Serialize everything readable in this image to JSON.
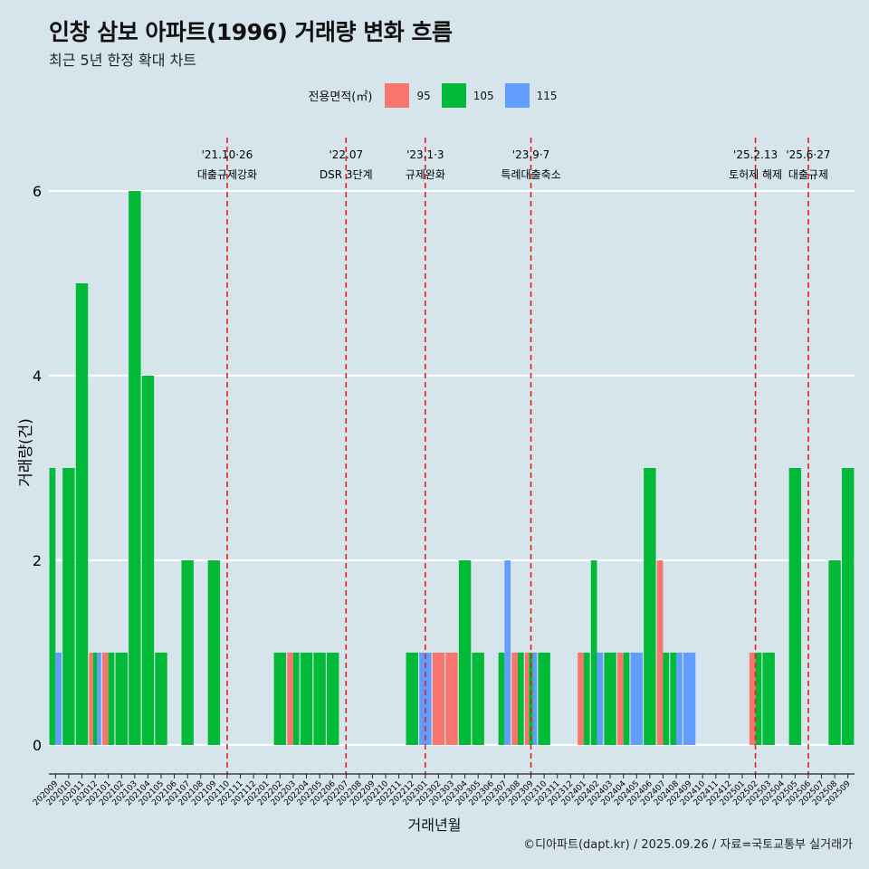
{
  "title": "인창 삼보 아파트(1996) 거래량 변화 흐름",
  "subtitle": "최근 5년 한정 확대 차트",
  "legend": {
    "title": "전용면적(㎡)",
    "items": [
      {
        "label": "95",
        "color": "#F8766D"
      },
      {
        "label": "105",
        "color": "#00BA38"
      },
      {
        "label": "115",
        "color": "#619CFF"
      }
    ]
  },
  "credit": "©디아파트(dapt.kr) / 2025.09.26 / 자료=국토교통부 실거래가",
  "chart_data": {
    "type": "bar",
    "xlabel": "거래년월",
    "ylabel": "거래량(건)",
    "ylim": [
      -0.3,
      6.3
    ],
    "yticks": [
      0,
      2,
      4,
      6
    ],
    "categories": [
      "202009",
      "202010",
      "202011",
      "202012",
      "202101",
      "202102",
      "202103",
      "202104",
      "202105",
      "202106",
      "202107",
      "202108",
      "202109",
      "202110",
      "202111",
      "202112",
      "202201",
      "202202",
      "202203",
      "202204",
      "202205",
      "202206",
      "202207",
      "202208",
      "202209",
      "202210",
      "202211",
      "202212",
      "202301",
      "202302",
      "202303",
      "202304",
      "202305",
      "202306",
      "202307",
      "202308",
      "202309",
      "202310",
      "202311",
      "202312",
      "202401",
      "202402",
      "202403",
      "202404",
      "202405",
      "202406",
      "202407",
      "202408",
      "202409",
      "202410",
      "202411",
      "202412",
      "202501",
      "202502",
      "202503",
      "202504",
      "202505",
      "202506",
      "202507",
      "202508",
      "202509"
    ],
    "series": [
      {
        "name": "95",
        "color": "#F8766D",
        "values": [
          0,
          0,
          0,
          1,
          1,
          0,
          0,
          0,
          0,
          0,
          0,
          0,
          0,
          0,
          0,
          0,
          0,
          0,
          1,
          0,
          0,
          0,
          0,
          0,
          0,
          0,
          0,
          0,
          0,
          1,
          1,
          0,
          0,
          0,
          0,
          1,
          1,
          0,
          0,
          0,
          1,
          0,
          0,
          1,
          0,
          0,
          2,
          0,
          0,
          0,
          0,
          0,
          0,
          1,
          0,
          0,
          0,
          0,
          0,
          0,
          0
        ]
      },
      {
        "name": "105",
        "color": "#00BA38",
        "values": [
          3,
          3,
          5,
          1,
          1,
          1,
          6,
          4,
          1,
          0,
          2,
          0,
          2,
          0,
          0,
          0,
          0,
          1,
          1,
          1,
          1,
          1,
          0,
          0,
          0,
          0,
          0,
          1,
          0,
          0,
          0,
          2,
          1,
          0,
          1,
          1,
          1,
          1,
          0,
          0,
          1,
          2,
          1,
          1,
          0,
          3,
          1,
          1,
          0,
          0,
          0,
          0,
          0,
          1,
          1,
          0,
          3,
          0,
          0,
          2,
          3
        ]
      },
      {
        "name": "115",
        "color": "#619CFF",
        "values": [
          1,
          0,
          0,
          1,
          0,
          0,
          0,
          0,
          0,
          0,
          0,
          0,
          0,
          0,
          0,
          0,
          0,
          0,
          0,
          0,
          0,
          0,
          0,
          0,
          0,
          0,
          0,
          0,
          1,
          0,
          0,
          0,
          0,
          0,
          2,
          0,
          1,
          0,
          0,
          0,
          0,
          1,
          0,
          0,
          1,
          0,
          0,
          1,
          1,
          0,
          0,
          0,
          0,
          0,
          0,
          0,
          0,
          0,
          0,
          0,
          0
        ]
      }
    ],
    "events": [
      {
        "label": "'21.10·26",
        "sub": "대출규제강화",
        "at": "202110"
      },
      {
        "label": "'22.07",
        "sub": "DSR 3단계",
        "at": "202207"
      },
      {
        "label": "'23.1·3",
        "sub": "규제완화",
        "at": "202301"
      },
      {
        "label": "'23.9·7",
        "sub": "특례대출축소",
        "at": "202309"
      },
      {
        "label": "'25.2.13",
        "sub": "토허제 해제",
        "at": "202502"
      },
      {
        "label": "'25.6·27",
        "sub": "대출규제",
        "at": "202506"
      }
    ]
  }
}
